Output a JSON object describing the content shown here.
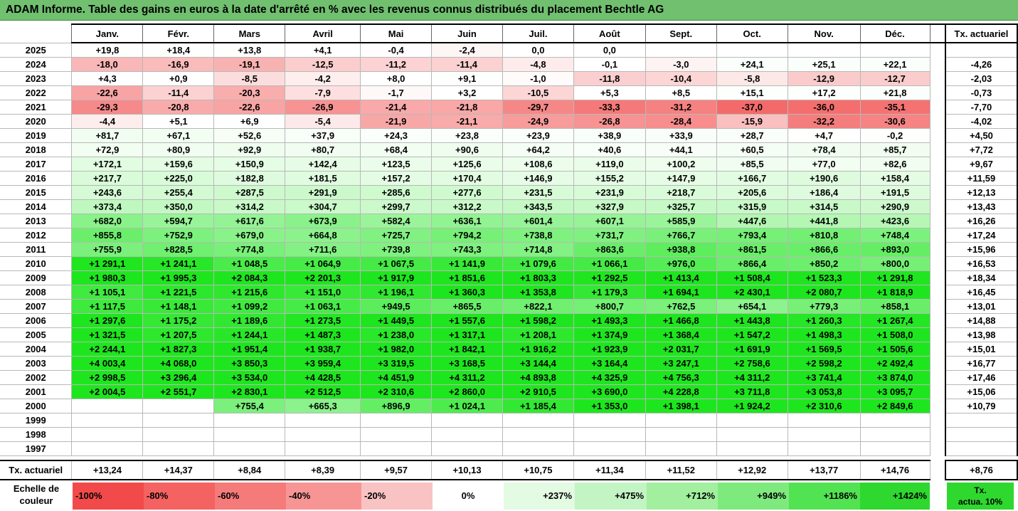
{
  "title": "ADAM Informe. Table des gains en euros à la date d'arrêté en % avec les revenus connus distribués du placement Bechtle AG",
  "months": [
    "Janv.",
    "Févr.",
    "Mars",
    "Avril",
    "Mai",
    "Juin",
    "Juil.",
    "Août",
    "Sept.",
    "Oct.",
    "Nov.",
    "Déc."
  ],
  "tx_header": "Tx. actuariel",
  "rows": [
    {
      "year": "2025",
      "vals": [
        "+19,8",
        "+18,4",
        "+13,8",
        "+4,1",
        "-0,4",
        "-2,4",
        "0,0",
        "0,0",
        "",
        "",
        "",
        ""
      ],
      "tx": ""
    },
    {
      "year": "2024",
      "vals": [
        "-18,0",
        "-16,9",
        "-19,1",
        "-12,5",
        "-11,2",
        "-11,4",
        "-4,8",
        "-0,1",
        "-3,0",
        "+24,1",
        "+25,1",
        "+22,1"
      ],
      "tx": "-4,26"
    },
    {
      "year": "2023",
      "vals": [
        "+4,3",
        "+0,9",
        "-8,5",
        "-4,2",
        "+8,0",
        "+9,1",
        "-1,0",
        "-11,8",
        "-10,4",
        "-5,8",
        "-12,9",
        "-12,7"
      ],
      "tx": "-2,03"
    },
    {
      "year": "2022",
      "vals": [
        "-22,6",
        "-11,4",
        "-20,3",
        "-7,9",
        "-1,7",
        "+3,2",
        "-10,5",
        "+5,3",
        "+8,5",
        "+15,1",
        "+17,2",
        "+21,8"
      ],
      "tx": "-0,73"
    },
    {
      "year": "2021",
      "vals": [
        "-29,3",
        "-20,8",
        "-22,6",
        "-26,9",
        "-21,4",
        "-21,8",
        "-29,7",
        "-33,3",
        "-31,2",
        "-37,0",
        "-36,0",
        "-35,1"
      ],
      "tx": "-7,70"
    },
    {
      "year": "2020",
      "vals": [
        "-4,4",
        "+5,1",
        "+6,9",
        "-5,4",
        "-21,9",
        "-21,1",
        "-24,9",
        "-26,8",
        "-28,4",
        "-15,9",
        "-32,2",
        "-30,6"
      ],
      "tx": "-4,02"
    },
    {
      "year": "2019",
      "vals": [
        "+81,7",
        "+67,1",
        "+52,6",
        "+37,9",
        "+24,3",
        "+23,8",
        "+23,9",
        "+38,9",
        "+33,9",
        "+28,7",
        "+4,7",
        "-0,2"
      ],
      "tx": "+4,50"
    },
    {
      "year": "2018",
      "vals": [
        "+72,9",
        "+80,9",
        "+92,9",
        "+80,7",
        "+68,4",
        "+90,6",
        "+64,2",
        "+40,6",
        "+44,1",
        "+60,5",
        "+78,4",
        "+85,7"
      ],
      "tx": "+7,72"
    },
    {
      "year": "2017",
      "vals": [
        "+172,1",
        "+159,6",
        "+150,9",
        "+142,4",
        "+123,5",
        "+125,6",
        "+108,6",
        "+119,0",
        "+100,2",
        "+85,5",
        "+77,0",
        "+82,6"
      ],
      "tx": "+9,67"
    },
    {
      "year": "2016",
      "vals": [
        "+217,7",
        "+225,0",
        "+182,8",
        "+181,5",
        "+157,2",
        "+170,4",
        "+146,9",
        "+155,2",
        "+147,9",
        "+166,7",
        "+190,6",
        "+158,4"
      ],
      "tx": "+11,59"
    },
    {
      "year": "2015",
      "vals": [
        "+243,6",
        "+255,4",
        "+287,5",
        "+291,9",
        "+285,6",
        "+277,6",
        "+231,5",
        "+231,9",
        "+218,7",
        "+205,6",
        "+186,4",
        "+191,5"
      ],
      "tx": "+12,13"
    },
    {
      "year": "2014",
      "vals": [
        "+373,4",
        "+350,0",
        "+314,2",
        "+304,7",
        "+299,7",
        "+312,2",
        "+343,5",
        "+327,9",
        "+325,7",
        "+315,9",
        "+314,5",
        "+290,9"
      ],
      "tx": "+13,43"
    },
    {
      "year": "2013",
      "vals": [
        "+682,0",
        "+594,7",
        "+617,6",
        "+673,9",
        "+582,4",
        "+636,1",
        "+601,4",
        "+607,1",
        "+585,9",
        "+447,6",
        "+441,8",
        "+423,6"
      ],
      "tx": "+16,26"
    },
    {
      "year": "2012",
      "vals": [
        "+855,8",
        "+752,9",
        "+679,0",
        "+664,8",
        "+725,7",
        "+794,2",
        "+738,8",
        "+731,7",
        "+766,7",
        "+793,4",
        "+810,8",
        "+748,4"
      ],
      "tx": "+17,24"
    },
    {
      "year": "2011",
      "vals": [
        "+755,9",
        "+828,5",
        "+774,8",
        "+711,6",
        "+739,8",
        "+743,3",
        "+714,8",
        "+863,6",
        "+938,8",
        "+861,5",
        "+866,6",
        "+893,0"
      ],
      "tx": "+15,96"
    },
    {
      "year": "2010",
      "vals": [
        "+1 291,1",
        "+1 241,1",
        "+1 048,5",
        "+1 064,9",
        "+1 067,5",
        "+1 141,9",
        "+1 079,6",
        "+1 066,1",
        "+976,0",
        "+866,4",
        "+850,2",
        "+800,0"
      ],
      "tx": "+16,53"
    },
    {
      "year": "2009",
      "vals": [
        "+1 980,3",
        "+1 995,3",
        "+2 084,3",
        "+2 201,3",
        "+1 917,9",
        "+1 851,6",
        "+1 803,3",
        "+1 292,5",
        "+1 413,4",
        "+1 508,4",
        "+1 523,3",
        "+1 291,8"
      ],
      "tx": "+18,34"
    },
    {
      "year": "2008",
      "vals": [
        "+1 105,1",
        "+1 221,5",
        "+1 215,6",
        "+1 151,0",
        "+1 196,1",
        "+1 360,3",
        "+1 353,8",
        "+1 179,3",
        "+1 694,1",
        "+2 430,1",
        "+2 080,7",
        "+1 818,9"
      ],
      "tx": "+16,45"
    },
    {
      "year": "2007",
      "vals": [
        "+1 117,5",
        "+1 148,1",
        "+1 099,2",
        "+1 063,1",
        "+949,5",
        "+865,5",
        "+822,1",
        "+800,7",
        "+762,5",
        "+654,1",
        "+779,3",
        "+858,1"
      ],
      "tx": "+13,01"
    },
    {
      "year": "2006",
      "vals": [
        "+1 297,6",
        "+1 175,2",
        "+1 189,6",
        "+1 273,5",
        "+1 449,5",
        "+1 557,6",
        "+1 598,2",
        "+1 493,3",
        "+1 466,8",
        "+1 443,8",
        "+1 260,3",
        "+1 267,4"
      ],
      "tx": "+14,88"
    },
    {
      "year": "2005",
      "vals": [
        "+1 321,5",
        "+1 207,5",
        "+1 244,1",
        "+1 487,3",
        "+1 238,0",
        "+1 317,1",
        "+1 208,1",
        "+1 374,9",
        "+1 368,4",
        "+1 547,2",
        "+1 498,3",
        "+1 508,0"
      ],
      "tx": "+13,98"
    },
    {
      "year": "2004",
      "vals": [
        "+2 244,1",
        "+1 827,3",
        "+1 951,4",
        "+1 938,7",
        "+1 982,0",
        "+1 842,1",
        "+1 916,2",
        "+1 923,9",
        "+2 031,7",
        "+1 691,9",
        "+1 569,5",
        "+1 505,6"
      ],
      "tx": "+15,01"
    },
    {
      "year": "2003",
      "vals": [
        "+4 003,4",
        "+4 068,0",
        "+3 850,3",
        "+3 959,4",
        "+3 319,5",
        "+3 168,5",
        "+3 144,4",
        "+3 164,4",
        "+3 247,1",
        "+2 758,6",
        "+2 598,2",
        "+2 492,4"
      ],
      "tx": "+16,77"
    },
    {
      "year": "2002",
      "vals": [
        "+2 998,5",
        "+3 296,4",
        "+3 534,0",
        "+4 428,5",
        "+4 451,9",
        "+4 311,2",
        "+4 893,8",
        "+4 325,9",
        "+4 756,3",
        "+4 311,2",
        "+3 741,4",
        "+3 874,0"
      ],
      "tx": "+17,46"
    },
    {
      "year": "2001",
      "vals": [
        "+2 004,5",
        "+2 551,7",
        "+2 830,1",
        "+2 512,5",
        "+2 310,6",
        "+2 860,0",
        "+2 910,5",
        "+3 690,0",
        "+4 228,8",
        "+3 711,8",
        "+3 053,8",
        "+3 095,7"
      ],
      "tx": "+15,06"
    },
    {
      "year": "2000",
      "vals": [
        "",
        "",
        "+755,4",
        "+665,3",
        "+896,9",
        "+1 024,1",
        "+1 185,4",
        "+1 353,0",
        "+1 398,1",
        "+1 924,2",
        "+2 310,6",
        "+2 849,6"
      ],
      "tx": "+10,79"
    },
    {
      "year": "1999",
      "vals": [
        "",
        "",
        "",
        "",
        "",
        "",
        "",
        "",
        "",
        "",
        "",
        ""
      ],
      "tx": ""
    },
    {
      "year": "1998",
      "vals": [
        "",
        "",
        "",
        "",
        "",
        "",
        "",
        "",
        "",
        "",
        "",
        ""
      ],
      "tx": ""
    },
    {
      "year": "1997",
      "vals": [
        "",
        "",
        "",
        "",
        "",
        "",
        "",
        "",
        "",
        "",
        "",
        ""
      ],
      "tx": ""
    }
  ],
  "footer": {
    "label": "Tx. actuariel",
    "vals": [
      "+13,24",
      "+14,37",
      "+8,84",
      "+8,39",
      "+9,57",
      "+10,13",
      "+10,75",
      "+11,34",
      "+11,52",
      "+12,92",
      "+13,77",
      "+14,76"
    ],
    "tx": "+8,76"
  },
  "scale": {
    "label_line1": "Echelle de",
    "label_line2": "couleur",
    "items": [
      {
        "text": "-100%",
        "color": "#f24a4a",
        "align": "l"
      },
      {
        "text": "-80%",
        "color": "#f46262",
        "align": "l"
      },
      {
        "text": "-60%",
        "color": "#f57b7b",
        "align": "l"
      },
      {
        "text": "-40%",
        "color": "#f79595",
        "align": "l"
      },
      {
        "text": "-20%",
        "color": "#fac3c3",
        "align": "l"
      },
      {
        "text": "0%",
        "color": "#ffffff",
        "align": "c"
      },
      {
        "text": "+237%",
        "color": "#e3fae3",
        "align": "r"
      },
      {
        "text": "+475%",
        "color": "#c3f4c3",
        "align": "r"
      },
      {
        "text": "+712%",
        "color": "#a2ef9f",
        "align": "r"
      },
      {
        "text": "+949%",
        "color": "#7eea7e",
        "align": "r"
      },
      {
        "text": "+1186%",
        "color": "#52e352",
        "align": "r"
      },
      {
        "text": "+1424%",
        "color": "#2ed82e",
        "align": "r"
      }
    ],
    "tx_line1": "Tx.",
    "tx_line2": "actua. 10%",
    "tx_color": "#2ed82e"
  },
  "colors": {
    "title_bg": "#70c070",
    "green_max": "#1ee61e",
    "red_max": "#f46a6a"
  }
}
